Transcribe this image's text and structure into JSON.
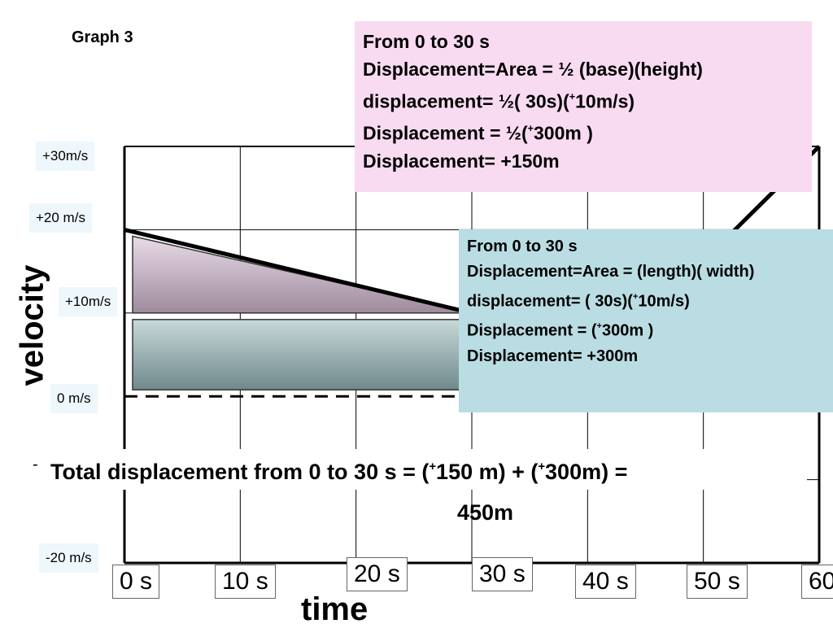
{
  "title": "Graph 3",
  "chart_data": {
    "type": "line",
    "xlabel": "time",
    "ylabel": "velocity",
    "x_ticks": [
      "0 s",
      "10 s",
      "20 s",
      "30 s",
      "40 s",
      "50 s",
      "60"
    ],
    "y_ticks": [
      "+30m/s",
      "+20 m/s",
      "+10m/s",
      "0 m/s",
      "",
      "-20 m/s"
    ],
    "xlim": [
      0,
      60
    ],
    "ylim": [
      -20,
      30
    ],
    "grid": true,
    "series": [
      {
        "x": [
          0,
          30
        ],
        "y": [
          20,
          10
        ]
      },
      {
        "x": [
          52,
          60
        ],
        "y": [
          19,
          30
        ]
      }
    ],
    "shaded_regions": [
      {
        "type": "triangle",
        "points": [
          [
            0,
            20
          ],
          [
            30,
            10
          ],
          [
            0,
            10
          ]
        ],
        "color": "#b9a8b8"
      },
      {
        "type": "rectangle",
        "x": [
          0,
          30
        ],
        "y": [
          0,
          10
        ],
        "color": "#8fa8aa"
      }
    ],
    "zero_line": {
      "y": 0,
      "style": "dashed"
    }
  },
  "annotations": {
    "triangle": {
      "line1": "From  0 to 30 s",
      "line2": "Displacement=Area = ½ (base)(height)",
      "line3_pre": "displacement= ½( 30s)(",
      "line3_sup": "+",
      "line3_post": "10m/s)",
      "line4_pre": "Displacement = ½(",
      "line4_sup": "+",
      "line4_post": "300m )",
      "line5": "Displacement= +150m"
    },
    "rectangle": {
      "line1": "From 0 to 30 s",
      "line2": "Displacement=Area = (length)( width)",
      "line3_pre": "displacement= ( 30s)(",
      "line3_sup": "+",
      "line3_post": "10m/s)",
      "line4_pre": "Displacement =  (",
      "line4_sup": "+",
      "line4_post": "300m )",
      "line5": "Displacement= +300m"
    },
    "total": {
      "dash": "-",
      "pre": "Total displacement from 0 to 30 s = (",
      "sup1": "+",
      "mid": "150 m) + (",
      "sup2": "+",
      "post": "300m) =",
      "result": "450m"
    }
  }
}
